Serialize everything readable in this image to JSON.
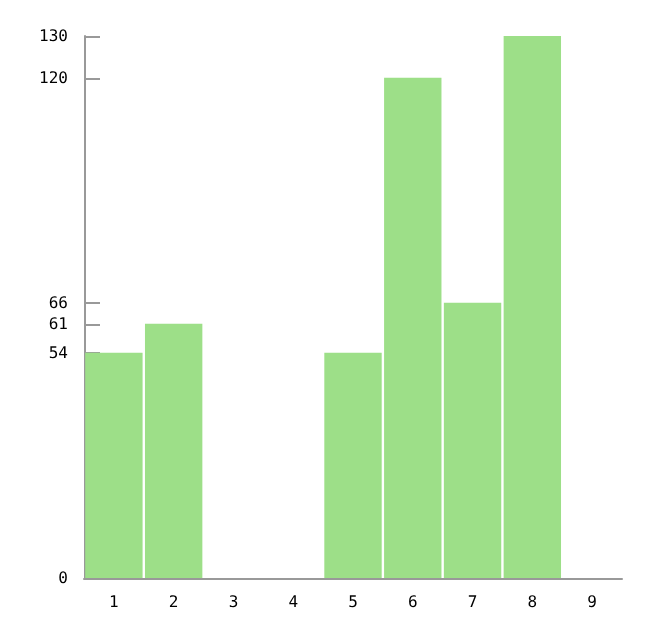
{
  "chart_data": {
    "type": "bar",
    "categories": [
      "1",
      "2",
      "3",
      "4",
      "5",
      "6",
      "7",
      "8",
      "9"
    ],
    "values": [
      54,
      61,
      0,
      0,
      54,
      120,
      66,
      130,
      0
    ],
    "color": "#9ddf88",
    "ylim": [
      0,
      130
    ],
    "yticks": [
      0,
      54,
      61,
      66,
      120,
      130
    ],
    "grid": false
  }
}
